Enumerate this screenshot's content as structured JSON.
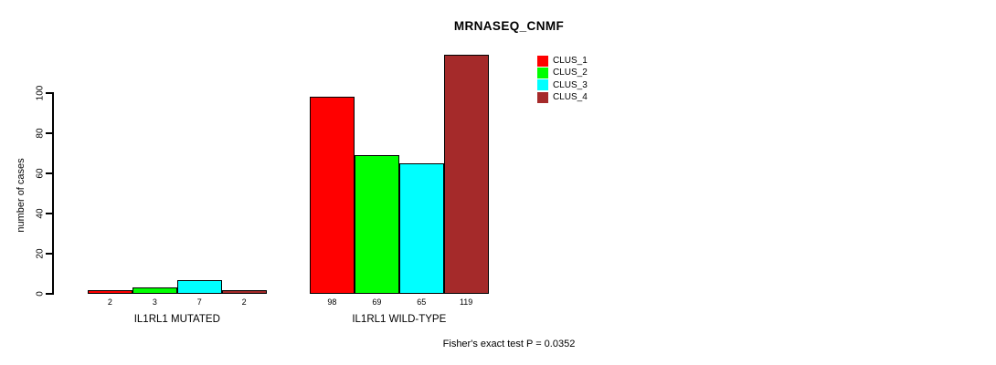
{
  "chart_data": {
    "type": "bar",
    "title": "MRNASEQ_CNMF",
    "ylabel": "number of cases",
    "xlabel": "",
    "categories": [
      "IL1RL1 MUTATED",
      "IL1RL1 WILD-TYPE"
    ],
    "series": [
      {
        "name": "CLUS_1",
        "color": "#FF0000",
        "values": [
          2,
          98
        ]
      },
      {
        "name": "CLUS_2",
        "color": "#00FF00",
        "values": [
          3,
          69
        ]
      },
      {
        "name": "CLUS_3",
        "color": "#00FFFF",
        "values": [
          7,
          65
        ]
      },
      {
        "name": "CLUS_4",
        "color": "#A52A2A",
        "values": [
          2,
          119
        ]
      }
    ],
    "yticks": [
      0,
      20,
      40,
      60,
      80,
      100
    ],
    "ylim": [
      0,
      125
    ],
    "grid": false,
    "bar_value_labels_shown": true,
    "legend_position": "inside-top-center",
    "annotation": "Fisher's exact test P = 0.0352"
  },
  "colors": {
    "background": "#FFFFFF",
    "axis": "#000000",
    "bar_border": "#000000",
    "text": "#000000"
  }
}
